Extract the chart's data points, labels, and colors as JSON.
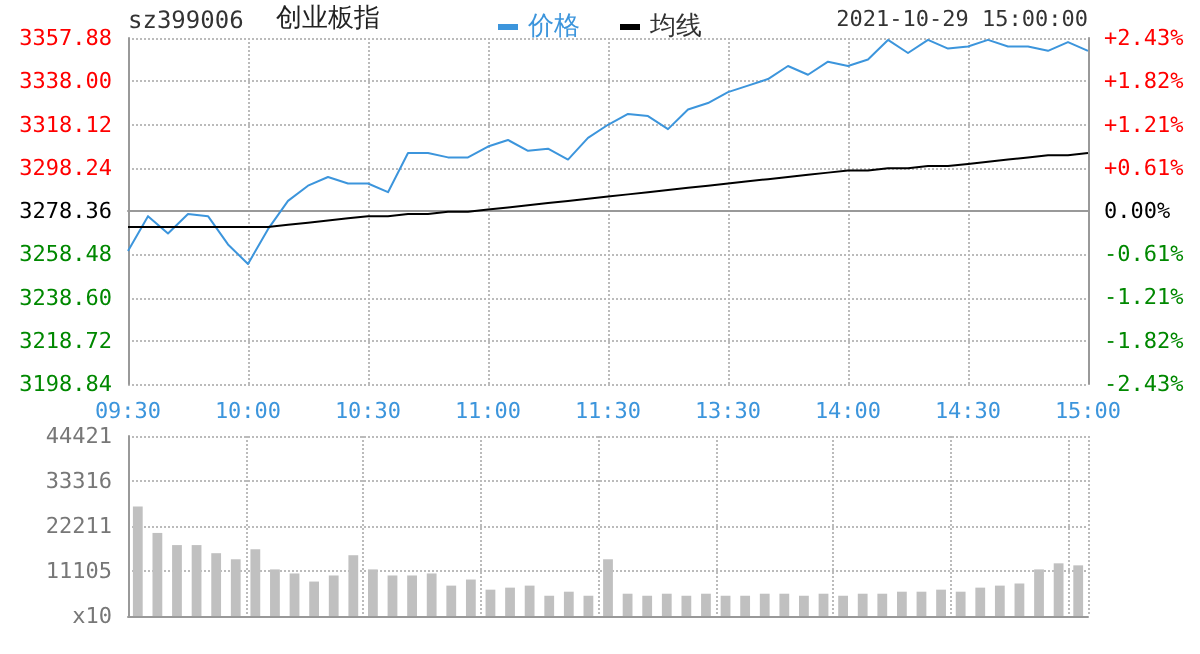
{
  "chart_data": [
    {
      "type": "line",
      "title": "创业板指",
      "subtitle": "sz399006",
      "annotations": [
        "2021-10-29 15:00:00"
      ],
      "categories": [
        "09:30",
        null,
        null,
        null,
        null,
        null,
        "10:00",
        null,
        null,
        null,
        null,
        null,
        "10:30",
        null,
        null,
        null,
        null,
        null,
        "11:00",
        null,
        null,
        null,
        null,
        null,
        "11:30",
        null,
        null,
        null,
        null,
        null,
        "13:30",
        null,
        null,
        null,
        null,
        null,
        "14:00",
        null,
        null,
        null,
        null,
        null,
        "14:30",
        null,
        null,
        null,
        null,
        null,
        "15:00"
      ],
      "series": [
        {
          "name": "价格",
          "color": "#3c95dc",
          "values": [
            3260,
            3276,
            3268,
            3277,
            3276,
            3263,
            3254,
            3270,
            3283,
            3290,
            3294,
            3291,
            3291,
            3287,
            3305,
            3305,
            3303,
            3303,
            3308,
            3311,
            3306,
            3307,
            3302,
            3312,
            3318,
            3323,
            3322,
            3316,
            3325,
            3328,
            3333,
            3336,
            3339,
            3345,
            3341,
            3347,
            3345,
            3348,
            3357,
            3351,
            3357,
            3353,
            3354,
            3357,
            3354,
            3354,
            3352,
            3356,
            3352
          ]
        },
        {
          "name": "均线",
          "color": "#000000",
          "values": [
            3271,
            3271,
            3271,
            3271,
            3271,
            3271,
            3271,
            3271,
            3272,
            3273,
            3274,
            3275,
            3276,
            3276,
            3277,
            3277,
            3278,
            3278,
            3279,
            3280,
            3281,
            3282,
            3283,
            3284,
            3285,
            3286,
            3287,
            3288,
            3289,
            3290,
            3291,
            3292,
            3293,
            3294,
            3295,
            3296,
            3297,
            3297,
            3298,
            3298,
            3299,
            3299,
            3300,
            3301,
            3302,
            3303,
            3304,
            3304,
            3305
          ]
        }
      ],
      "ylim": [
        3198.84,
        3357.88
      ],
      "yticks": [
        3198.84,
        3218.72,
        {
          "value": 3238.6,
          "label": "3238.60"
        },
        3258.48,
        3278.36,
        3298.24,
        3318.12,
        {
          "value": 3338,
          "label": "3338.00"
        },
        3357.88
      ],
      "y2lim": [
        -2.43,
        2.43
      ],
      "y2ticks": [
        {
          "value": -2.43,
          "label": "-2.43%"
        },
        {
          "value": -1.82,
          "label": "-1.82%"
        },
        {
          "value": -1.21,
          "label": "-1.21%"
        },
        {
          "value": -0.61,
          "label": "-0.61%"
        },
        {
          "value": 0,
          "label": "0.00%"
        },
        {
          "value": 0.61,
          "label": "+0.61%"
        },
        {
          "value": 1.21,
          "label": "+1.21%"
        },
        {
          "value": 1.82,
          "label": "+1.82%"
        },
        {
          "value": 2.43,
          "label": "+2.43%"
        }
      ],
      "grid": true,
      "legend": "top",
      "marker": "none",
      "line_style": "solid"
    },
    {
      "type": "bar",
      "categories": [
        null,
        null,
        null,
        null,
        null,
        null,
        null,
        null,
        null,
        null,
        null,
        null,
        null,
        null,
        null,
        null,
        null,
        null,
        null,
        null,
        null,
        null,
        null,
        null,
        null,
        null,
        null,
        null,
        null,
        null,
        null,
        null,
        null,
        null,
        null,
        null,
        null,
        null,
        null,
        null,
        null,
        null,
        null,
        null,
        null,
        null,
        null,
        null,
        null
      ],
      "color": "#c0c0c0",
      "values": [
        27000,
        20500,
        17500,
        17500,
        15500,
        14000,
        16500,
        11500,
        10500,
        8500,
        10000,
        15000,
        11500,
        10000,
        10000,
        10500,
        7500,
        9000,
        6500,
        7000,
        7500,
        5000,
        6000,
        5000,
        14000,
        5500,
        5000,
        5500,
        5000,
        5500,
        5000,
        5000,
        5500,
        5500,
        5000,
        5500,
        5000,
        5500,
        5500,
        6000,
        6000,
        6500,
        6000,
        7000,
        7500,
        8000,
        11500,
        13000,
        12500
      ],
      "ylim": [
        0,
        44421
      ],
      "yticks": [
        {
          "value": 0,
          "label": "x10"
        },
        11105,
        22211,
        33316,
        44421
      ],
      "grid": true,
      "tick_labels": "y"
    }
  ]
}
